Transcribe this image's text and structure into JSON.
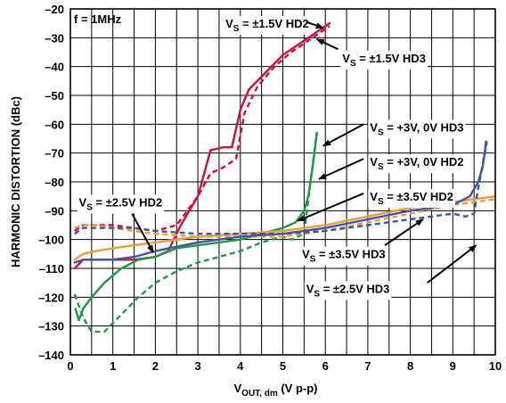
{
  "chart_data": {
    "type": "line",
    "xlabel": "V",
    "xlabel_sub": "OUT, dm",
    "xlabel_tail": " (V p-p)",
    "ylabel": "HARMONIC DISTORTION (dBc)",
    "xlim": [
      0,
      10
    ],
    "ylim": [
      -140,
      -20
    ],
    "x_ticks": [
      "0",
      "1",
      "2",
      "3",
      "4",
      "5",
      "6",
      "7",
      "8",
      "9",
      "10"
    ],
    "y_ticks": [
      "–20",
      "–30",
      "–40",
      "–50",
      "–60",
      "–70",
      "–80",
      "–90",
      "–100",
      "–110",
      "–120",
      "–130",
      "–140"
    ],
    "x_minor_step": 0.5,
    "grid": true,
    "condition_label": "f = 1MHz",
    "series": [
      {
        "color": "#d0103a",
        "dash": "solid",
        "points": [
          [
            0.1,
            -110
          ],
          [
            0.3,
            -107
          ],
          [
            1.0,
            -107
          ],
          [
            1.5,
            -107
          ],
          [
            2.0,
            -106
          ],
          [
            2.3,
            -104
          ],
          [
            2.6,
            -95
          ],
          [
            3.0,
            -85
          ],
          [
            3.3,
            -69
          ],
          [
            3.6,
            -68
          ],
          [
            3.8,
            -68
          ],
          [
            4.0,
            -55
          ],
          [
            4.2,
            -48
          ],
          [
            4.6,
            -42
          ],
          [
            5.0,
            -36
          ],
          [
            5.4,
            -32
          ],
          [
            5.8,
            -28
          ],
          [
            6.1,
            -25
          ]
        ]
      },
      {
        "color": "#d0103a",
        "dash": "dashed",
        "points": [
          [
            0.1,
            -97
          ],
          [
            0.3,
            -95
          ],
          [
            0.6,
            -95
          ],
          [
            1.0,
            -95
          ],
          [
            1.5,
            -96
          ],
          [
            2.0,
            -97
          ],
          [
            2.5,
            -95
          ],
          [
            3.0,
            -85
          ],
          [
            3.3,
            -77
          ],
          [
            3.6,
            -75
          ],
          [
            3.9,
            -72
          ],
          [
            4.1,
            -56
          ],
          [
            4.4,
            -47
          ],
          [
            4.8,
            -40
          ],
          [
            5.2,
            -35
          ],
          [
            5.6,
            -31
          ],
          [
            6.1,
            -26
          ]
        ]
      },
      {
        "color": "#1f9a44",
        "dash": "solid",
        "points": [
          [
            0.12,
            -124
          ],
          [
            0.2,
            -128
          ],
          [
            0.3,
            -124
          ],
          [
            0.5,
            -120
          ],
          [
            0.8,
            -115
          ],
          [
            1.2,
            -110
          ],
          [
            1.6,
            -107
          ],
          [
            2.0,
            -106
          ],
          [
            2.5,
            -103
          ],
          [
            3.0,
            -102
          ],
          [
            3.5,
            -101
          ],
          [
            4.0,
            -100
          ],
          [
            4.5,
            -98
          ],
          [
            5.0,
            -96
          ],
          [
            5.3,
            -94
          ],
          [
            5.5,
            -90
          ],
          [
            5.6,
            -85
          ],
          [
            5.7,
            -75
          ],
          [
            5.8,
            -63
          ]
        ]
      },
      {
        "color": "#1f9a44",
        "dash": "dashed",
        "points": [
          [
            0.1,
            -119
          ],
          [
            0.3,
            -127
          ],
          [
            0.5,
            -132
          ],
          [
            0.8,
            -132
          ],
          [
            1.2,
            -126
          ],
          [
            1.6,
            -120
          ],
          [
            2.0,
            -115
          ],
          [
            2.5,
            -111
          ],
          [
            3.0,
            -108
          ],
          [
            3.5,
            -106
          ],
          [
            4.0,
            -104
          ],
          [
            4.5,
            -101
          ],
          [
            5.0,
            -99
          ],
          [
            5.2,
            -100
          ],
          [
            5.5,
            -98
          ],
          [
            5.65,
            -80
          ],
          [
            5.8,
            -63
          ]
        ]
      },
      {
        "color": "#f39a3a",
        "dash": "solid",
        "points": [
          [
            0.1,
            -107
          ],
          [
            0.3,
            -105
          ],
          [
            0.6,
            -104
          ],
          [
            1.0,
            -103
          ],
          [
            1.5,
            -102
          ],
          [
            2.0,
            -101
          ],
          [
            3.0,
            -99
          ],
          [
            4.0,
            -98
          ],
          [
            5.0,
            -97
          ],
          [
            6.0,
            -95
          ],
          [
            7.0,
            -92
          ],
          [
            8.0,
            -89
          ],
          [
            9.0,
            -87
          ],
          [
            10.0,
            -85
          ]
        ]
      },
      {
        "color": "#f39a3a",
        "dash": "dashed",
        "points": [
          [
            0.1,
            -96
          ],
          [
            0.3,
            -95
          ],
          [
            0.6,
            -95
          ],
          [
            1.0,
            -96
          ],
          [
            1.5,
            -97
          ],
          [
            2.0,
            -98
          ],
          [
            3.0,
            -99
          ],
          [
            4.0,
            -99
          ],
          [
            5.0,
            -99
          ],
          [
            6.0,
            -97
          ],
          [
            7.0,
            -94
          ],
          [
            8.0,
            -91
          ],
          [
            9.0,
            -88
          ],
          [
            10.0,
            -86
          ]
        ]
      },
      {
        "color": "#3d57a8",
        "dash": "solid",
        "points": [
          [
            0.1,
            -108
          ],
          [
            0.3,
            -107
          ],
          [
            0.6,
            -107
          ],
          [
            1.0,
            -107
          ],
          [
            1.5,
            -106
          ],
          [
            2.0,
            -104
          ],
          [
            3.0,
            -101
          ],
          [
            4.0,
            -99
          ],
          [
            5.0,
            -98
          ],
          [
            6.0,
            -96
          ],
          [
            7.0,
            -93
          ],
          [
            8.0,
            -90
          ],
          [
            9.0,
            -88
          ],
          [
            9.4,
            -85
          ],
          [
            9.6,
            -80
          ],
          [
            9.7,
            -75
          ],
          [
            9.75,
            -70
          ],
          [
            9.78,
            -66
          ]
        ]
      },
      {
        "color": "#3d57a8",
        "dash": "dashed",
        "points": [
          [
            0.1,
            -98
          ],
          [
            0.3,
            -96
          ],
          [
            0.6,
            -96
          ],
          [
            1.0,
            -96
          ],
          [
            1.5,
            -96
          ],
          [
            2.0,
            -97
          ],
          [
            3.0,
            -98
          ],
          [
            4.0,
            -98
          ],
          [
            5.0,
            -98
          ],
          [
            6.0,
            -97
          ],
          [
            7.0,
            -95
          ],
          [
            8.0,
            -93
          ],
          [
            8.5,
            -92
          ],
          [
            9.0,
            -91
          ],
          [
            9.3,
            -92
          ],
          [
            9.5,
            -91
          ],
          [
            9.6,
            -82
          ],
          [
            9.8,
            -66
          ]
        ]
      }
    ],
    "annotations": [
      {
        "prefix": "V",
        "sub": "S",
        "text": " = ±1.5V HD2",
        "text_at": [
          3.65,
          -26.5
        ],
        "arrow_from": [
          5.55,
          -24.5
        ],
        "arrow_to": [
          5.95,
          -26.6
        ]
      },
      {
        "prefix": "V",
        "sub": "S",
        "text": " = ±1.5V HD3",
        "text_at": [
          6.4,
          -38.5
        ],
        "arrow_from": [
          6.3,
          -34
        ],
        "arrow_to": [
          5.8,
          -30.5
        ]
      },
      {
        "prefix": "V",
        "sub": "S",
        "text": " = +3V, 0V HD3",
        "text_at": [
          7.05,
          -62.5
        ],
        "arrow_from": [
          6.9,
          -60
        ],
        "arrow_to": [
          5.95,
          -67.5
        ]
      },
      {
        "prefix": "V",
        "sub": "S",
        "text": " = +3V, 0V HD2",
        "text_at": [
          7.05,
          -74.5
        ],
        "arrow_from": [
          6.9,
          -72
        ],
        "arrow_to": [
          5.85,
          -79
        ]
      },
      {
        "prefix": "V",
        "sub": "S",
        "text": " = ±3.5V HD2",
        "text_at": [
          7.05,
          -86.5
        ],
        "arrow_from": [
          6.9,
          -84
        ],
        "arrow_to": [
          5.35,
          -93.5
        ]
      },
      {
        "prefix": "V",
        "sub": "S",
        "text": " = ±2.5V HD2",
        "text_at": [
          0.2,
          -88.5
        ],
        "arrow_from": [
          1.45,
          -91
        ],
        "arrow_to": [
          1.95,
          -104.5
        ]
      },
      {
        "prefix": "V",
        "sub": "S",
        "text": " = ±3.5V HD3",
        "text_at": [
          5.45,
          -106.5
        ],
        "arrow_from": [
          7.4,
          -102
        ],
        "arrow_to": [
          8.3,
          -93
        ]
      },
      {
        "prefix": "V",
        "sub": "S",
        "text": " = ±2.5V HD3",
        "text_at": [
          5.55,
          -118.5
        ],
        "arrow_from": [
          8.4,
          -115
        ],
        "arrow_to": [
          9.55,
          -102
        ]
      }
    ]
  }
}
